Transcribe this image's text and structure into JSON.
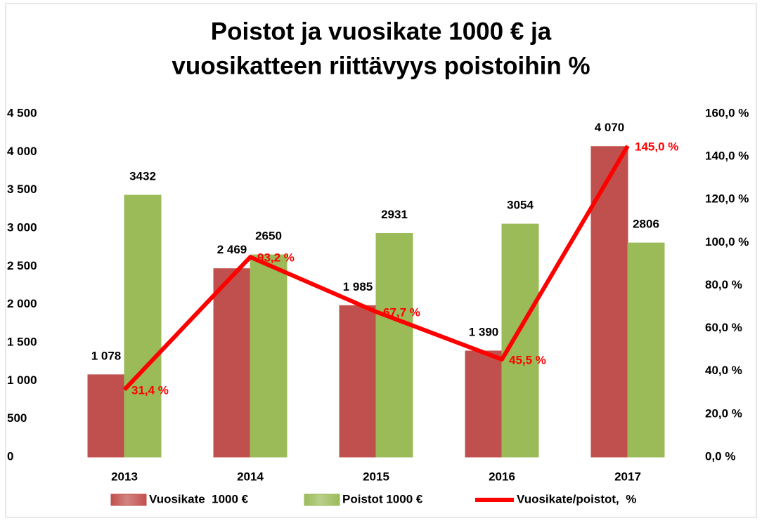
{
  "chart_data": {
    "type": "bar",
    "title": [
      "Poistot ja vuosikate 1000 € ja",
      "vuosikatteen riittävyys poistoihin %"
    ],
    "categories": [
      "2013",
      "2014",
      "2015",
      "2016",
      "2017"
    ],
    "series": [
      {
        "name": "Vuosikate  1000 €",
        "type": "bar",
        "color": "#c0504d",
        "values": [
          1078,
          2469,
          1985,
          1390,
          4070
        ],
        "value_labels": [
          "1 078",
          "2 469",
          "1 985",
          "1 390",
          "4 070"
        ]
      },
      {
        "name": "Poistot 1000 €",
        "type": "bar",
        "color": "#9bbb59",
        "values": [
          3432,
          2650,
          2931,
          3054,
          2806
        ]
      },
      {
        "name": "Vuosikate/poistot,  %",
        "type": "line",
        "axis": "y2",
        "color": "#ff0000",
        "values": [
          31.4,
          93.2,
          67.7,
          45.5,
          145.0
        ],
        "value_labels": [
          "31,4 %",
          "93,2 %",
          "67,7 %",
          "45,5 %",
          "145,0 %"
        ]
      }
    ],
    "ylim": [
      0,
      4500
    ],
    "yticks": [
      0,
      500,
      {
        "value": 1000,
        "label": "1 000"
      },
      {
        "value": 1500,
        "label": "1 500"
      },
      {
        "value": 2000,
        "label": "2 000"
      },
      {
        "value": 2500,
        "label": "2 500"
      },
      {
        "value": 3000,
        "label": "3 000"
      },
      {
        "value": 3500,
        "label": "3 500"
      },
      {
        "value": 4000,
        "label": "4 000"
      },
      {
        "value": 4500,
        "label": "4 500"
      }
    ],
    "y2lim": [
      0,
      160
    ],
    "y2ticks": [
      {
        "value": 0,
        "label": "0,0 %"
      },
      {
        "value": 20,
        "label": "20,0 %"
      },
      {
        "value": 40,
        "label": "40,0 %"
      },
      {
        "value": 60,
        "label": "60,0 %"
      },
      {
        "value": 80,
        "label": "80,0 %"
      },
      {
        "value": 100,
        "label": "100,0 %"
      },
      {
        "value": 120,
        "label": "120,0 %"
      },
      {
        "value": 140,
        "label": "140,0 %"
      },
      {
        "value": 160,
        "label": "160,0 %"
      }
    ],
    "legend": "bottom"
  }
}
